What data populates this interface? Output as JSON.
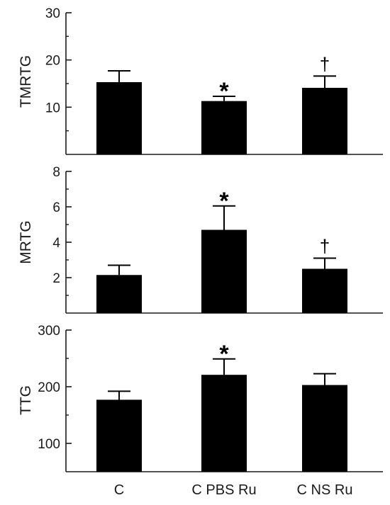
{
  "colors": {
    "bar": "#000000",
    "axis": "#1a1a1a",
    "background": "#ffffff"
  },
  "chart_data": [
    {
      "type": "bar",
      "categories": [
        "C",
        "C PBS Ru",
        "C NS Ru"
      ],
      "values": [
        15.3,
        11.3,
        14.1
      ],
      "errors": [
        2.4,
        1.0,
        2.5
      ],
      "annotations": [
        "",
        "*",
        "†"
      ],
      "ylabel": "TMRTG",
      "ylim": [
        0,
        30
      ],
      "yticks": [
        10,
        20,
        30
      ],
      "grid": false
    },
    {
      "type": "bar",
      "categories": [
        "C",
        "C PBS Ru",
        "C NS Ru"
      ],
      "values": [
        2.15,
        4.7,
        2.5
      ],
      "errors": [
        0.55,
        1.35,
        0.6
      ],
      "annotations": [
        "",
        "*",
        "†"
      ],
      "ylabel": "MRTG",
      "ylim": [
        0,
        8
      ],
      "yticks": [
        2,
        4,
        6,
        8
      ],
      "grid": false
    },
    {
      "type": "bar",
      "categories": [
        "C",
        "C PBS Ru",
        "C NS Ru"
      ],
      "values": [
        177,
        221,
        203
      ],
      "errors": [
        15,
        28,
        20
      ],
      "annotations": [
        "",
        "*",
        ""
      ],
      "ylabel": "TTG",
      "ylim": [
        50,
        300
      ],
      "yticks": [
        100,
        200,
        300
      ],
      "grid": false
    }
  ]
}
